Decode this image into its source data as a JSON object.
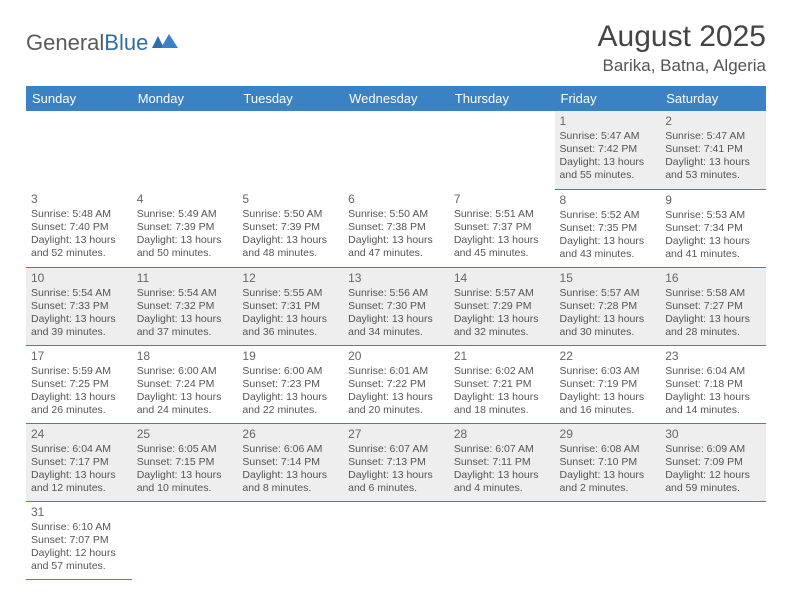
{
  "logo": {
    "text1": "General",
    "text2": "Blue"
  },
  "title": "August 2025",
  "location": "Barika, Batna, Algeria",
  "colors": {
    "header_bg": "#3b82c4",
    "header_text": "#ffffff",
    "row_alt_bg": "#eeeeee",
    "border": "#3b82c4",
    "title_color": "#444444",
    "text_color": "#555555"
  },
  "day_headers": [
    "Sunday",
    "Monday",
    "Tuesday",
    "Wednesday",
    "Thursday",
    "Friday",
    "Saturday"
  ],
  "weeks": [
    [
      null,
      null,
      null,
      null,
      null,
      {
        "n": "1",
        "sr": "Sunrise: 5:47 AM",
        "ss": "Sunset: 7:42 PM",
        "d1": "Daylight: 13 hours",
        "d2": "and 55 minutes."
      },
      {
        "n": "2",
        "sr": "Sunrise: 5:47 AM",
        "ss": "Sunset: 7:41 PM",
        "d1": "Daylight: 13 hours",
        "d2": "and 53 minutes."
      }
    ],
    [
      {
        "n": "3",
        "sr": "Sunrise: 5:48 AM",
        "ss": "Sunset: 7:40 PM",
        "d1": "Daylight: 13 hours",
        "d2": "and 52 minutes."
      },
      {
        "n": "4",
        "sr": "Sunrise: 5:49 AM",
        "ss": "Sunset: 7:39 PM",
        "d1": "Daylight: 13 hours",
        "d2": "and 50 minutes."
      },
      {
        "n": "5",
        "sr": "Sunrise: 5:50 AM",
        "ss": "Sunset: 7:39 PM",
        "d1": "Daylight: 13 hours",
        "d2": "and 48 minutes."
      },
      {
        "n": "6",
        "sr": "Sunrise: 5:50 AM",
        "ss": "Sunset: 7:38 PM",
        "d1": "Daylight: 13 hours",
        "d2": "and 47 minutes."
      },
      {
        "n": "7",
        "sr": "Sunrise: 5:51 AM",
        "ss": "Sunset: 7:37 PM",
        "d1": "Daylight: 13 hours",
        "d2": "and 45 minutes."
      },
      {
        "n": "8",
        "sr": "Sunrise: 5:52 AM",
        "ss": "Sunset: 7:35 PM",
        "d1": "Daylight: 13 hours",
        "d2": "and 43 minutes."
      },
      {
        "n": "9",
        "sr": "Sunrise: 5:53 AM",
        "ss": "Sunset: 7:34 PM",
        "d1": "Daylight: 13 hours",
        "d2": "and 41 minutes."
      }
    ],
    [
      {
        "n": "10",
        "sr": "Sunrise: 5:54 AM",
        "ss": "Sunset: 7:33 PM",
        "d1": "Daylight: 13 hours",
        "d2": "and 39 minutes."
      },
      {
        "n": "11",
        "sr": "Sunrise: 5:54 AM",
        "ss": "Sunset: 7:32 PM",
        "d1": "Daylight: 13 hours",
        "d2": "and 37 minutes."
      },
      {
        "n": "12",
        "sr": "Sunrise: 5:55 AM",
        "ss": "Sunset: 7:31 PM",
        "d1": "Daylight: 13 hours",
        "d2": "and 36 minutes."
      },
      {
        "n": "13",
        "sr": "Sunrise: 5:56 AM",
        "ss": "Sunset: 7:30 PM",
        "d1": "Daylight: 13 hours",
        "d2": "and 34 minutes."
      },
      {
        "n": "14",
        "sr": "Sunrise: 5:57 AM",
        "ss": "Sunset: 7:29 PM",
        "d1": "Daylight: 13 hours",
        "d2": "and 32 minutes."
      },
      {
        "n": "15",
        "sr": "Sunrise: 5:57 AM",
        "ss": "Sunset: 7:28 PM",
        "d1": "Daylight: 13 hours",
        "d2": "and 30 minutes."
      },
      {
        "n": "16",
        "sr": "Sunrise: 5:58 AM",
        "ss": "Sunset: 7:27 PM",
        "d1": "Daylight: 13 hours",
        "d2": "and 28 minutes."
      }
    ],
    [
      {
        "n": "17",
        "sr": "Sunrise: 5:59 AM",
        "ss": "Sunset: 7:25 PM",
        "d1": "Daylight: 13 hours",
        "d2": "and 26 minutes."
      },
      {
        "n": "18",
        "sr": "Sunrise: 6:00 AM",
        "ss": "Sunset: 7:24 PM",
        "d1": "Daylight: 13 hours",
        "d2": "and 24 minutes."
      },
      {
        "n": "19",
        "sr": "Sunrise: 6:00 AM",
        "ss": "Sunset: 7:23 PM",
        "d1": "Daylight: 13 hours",
        "d2": "and 22 minutes."
      },
      {
        "n": "20",
        "sr": "Sunrise: 6:01 AM",
        "ss": "Sunset: 7:22 PM",
        "d1": "Daylight: 13 hours",
        "d2": "and 20 minutes."
      },
      {
        "n": "21",
        "sr": "Sunrise: 6:02 AM",
        "ss": "Sunset: 7:21 PM",
        "d1": "Daylight: 13 hours",
        "d2": "and 18 minutes."
      },
      {
        "n": "22",
        "sr": "Sunrise: 6:03 AM",
        "ss": "Sunset: 7:19 PM",
        "d1": "Daylight: 13 hours",
        "d2": "and 16 minutes."
      },
      {
        "n": "23",
        "sr": "Sunrise: 6:04 AM",
        "ss": "Sunset: 7:18 PM",
        "d1": "Daylight: 13 hours",
        "d2": "and 14 minutes."
      }
    ],
    [
      {
        "n": "24",
        "sr": "Sunrise: 6:04 AM",
        "ss": "Sunset: 7:17 PM",
        "d1": "Daylight: 13 hours",
        "d2": "and 12 minutes."
      },
      {
        "n": "25",
        "sr": "Sunrise: 6:05 AM",
        "ss": "Sunset: 7:15 PM",
        "d1": "Daylight: 13 hours",
        "d2": "and 10 minutes."
      },
      {
        "n": "26",
        "sr": "Sunrise: 6:06 AM",
        "ss": "Sunset: 7:14 PM",
        "d1": "Daylight: 13 hours",
        "d2": "and 8 minutes."
      },
      {
        "n": "27",
        "sr": "Sunrise: 6:07 AM",
        "ss": "Sunset: 7:13 PM",
        "d1": "Daylight: 13 hours",
        "d2": "and 6 minutes."
      },
      {
        "n": "28",
        "sr": "Sunrise: 6:07 AM",
        "ss": "Sunset: 7:11 PM",
        "d1": "Daylight: 13 hours",
        "d2": "and 4 minutes."
      },
      {
        "n": "29",
        "sr": "Sunrise: 6:08 AM",
        "ss": "Sunset: 7:10 PM",
        "d1": "Daylight: 13 hours",
        "d2": "and 2 minutes."
      },
      {
        "n": "30",
        "sr": "Sunrise: 6:09 AM",
        "ss": "Sunset: 7:09 PM",
        "d1": "Daylight: 12 hours",
        "d2": "and 59 minutes."
      }
    ],
    [
      {
        "n": "31",
        "sr": "Sunrise: 6:10 AM",
        "ss": "Sunset: 7:07 PM",
        "d1": "Daylight: 12 hours",
        "d2": "and 57 minutes."
      },
      null,
      null,
      null,
      null,
      null,
      null
    ]
  ]
}
